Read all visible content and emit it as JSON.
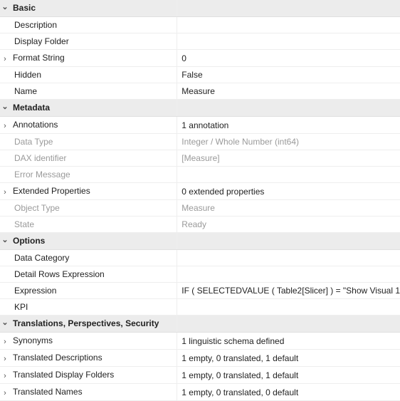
{
  "sections": {
    "basic": {
      "label": "Basic"
    },
    "metadata": {
      "label": "Metadata"
    },
    "options": {
      "label": "Options"
    },
    "translations": {
      "label": "Translations, Perspectives, Security"
    }
  },
  "basic": {
    "description": {
      "label": "Description",
      "value": ""
    },
    "display_folder": {
      "label": "Display Folder",
      "value": ""
    },
    "format_string": {
      "label": "Format String",
      "value": "0"
    },
    "hidden": {
      "label": "Hidden",
      "value": "False"
    },
    "name": {
      "label": "Name",
      "value": "Measure"
    }
  },
  "metadata": {
    "annotations": {
      "label": "Annotations",
      "value": "1 annotation"
    },
    "data_type": {
      "label": "Data Type",
      "value": "Integer / Whole Number (int64)"
    },
    "dax_identifier": {
      "label": "DAX identifier",
      "value": "[Measure]"
    },
    "error_message": {
      "label": "Error Message",
      "value": ""
    },
    "extended_properties": {
      "label": "Extended Properties",
      "value": "0 extended properties"
    },
    "object_type": {
      "label": "Object Type",
      "value": "Measure"
    },
    "state": {
      "label": "State",
      "value": "Ready"
    }
  },
  "options": {
    "data_category": {
      "label": "Data Category",
      "value": ""
    },
    "detail_rows_expression": {
      "label": "Detail Rows Expression",
      "value": ""
    },
    "expression": {
      "label": "Expression",
      "value": "IF (    SELECTEDVALUE ( Table2[Slicer] ) = \"Show Visual 1"
    },
    "kpi": {
      "label": "KPI",
      "value": ""
    }
  },
  "translations": {
    "synonyms": {
      "label": "Synonyms",
      "value": "1 linguistic schema defined"
    },
    "translated_descriptions": {
      "label": "Translated Descriptions",
      "value": "1 empty, 0 translated, 1 default"
    },
    "translated_display_folders": {
      "label": "Translated Display Folders",
      "value": "1 empty, 0 translated, 1 default"
    },
    "translated_names": {
      "label": "Translated Names",
      "value": "1 empty, 0 translated, 0 default"
    }
  }
}
